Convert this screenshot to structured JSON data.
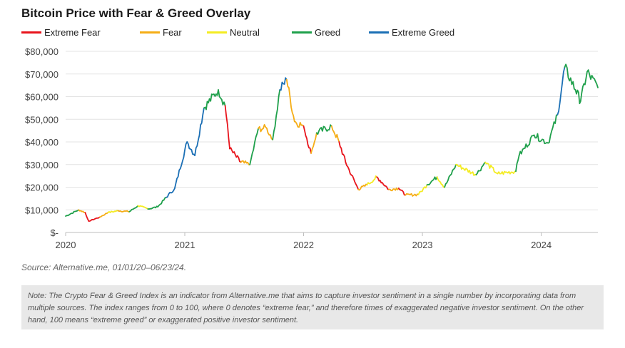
{
  "chart_data": {
    "type": "line",
    "title": "Bitcoin Price with Fear & Greed Overlay",
    "legend": {
      "placement": "top-left",
      "entries": [
        {
          "name": "Extreme Fear",
          "color": "#e8141c"
        },
        {
          "name": "Fear",
          "color": "#f5ad16"
        },
        {
          "name": "Neutral",
          "color": "#f4ec22"
        },
        {
          "name": "Greed",
          "color": "#1fa04b"
        },
        {
          "name": "Extreme Greed",
          "color": "#1b6fb5"
        }
      ]
    },
    "xlabel": "",
    "ylabel": "",
    "x_ticks": [
      "2020",
      "2021",
      "2022",
      "2023",
      "2024"
    ],
    "y_ticks": [
      "$-",
      "$10,000",
      "$20,000",
      "$30,000",
      "$40,000",
      "$50,000",
      "$60,000",
      "$70,000",
      "$80,000"
    ],
    "ylim": [
      0,
      80000
    ],
    "xlim": [
      "2020-01-01",
      "2024-06-23"
    ],
    "grid": true,
    "series": [
      {
        "date": "2020-01-01",
        "price": 7200,
        "sentiment": "Fear"
      },
      {
        "date": "2020-02-10",
        "price": 10000,
        "sentiment": "Greed"
      },
      {
        "date": "2020-03-01",
        "price": 8800,
        "sentiment": "Fear"
      },
      {
        "date": "2020-03-12",
        "price": 5000,
        "sentiment": "Extreme Fear"
      },
      {
        "date": "2020-04-15",
        "price": 6800,
        "sentiment": "Extreme Fear"
      },
      {
        "date": "2020-05-10",
        "price": 8800,
        "sentiment": "Fear"
      },
      {
        "date": "2020-06-10",
        "price": 9600,
        "sentiment": "Neutral"
      },
      {
        "date": "2020-07-15",
        "price": 9200,
        "sentiment": "Fear"
      },
      {
        "date": "2020-08-10",
        "price": 11800,
        "sentiment": "Greed"
      },
      {
        "date": "2020-09-10",
        "price": 10400,
        "sentiment": "Neutral"
      },
      {
        "date": "2020-10-10",
        "price": 11300,
        "sentiment": "Greed"
      },
      {
        "date": "2020-11-05",
        "price": 15500,
        "sentiment": "Greed"
      },
      {
        "date": "2020-12-01",
        "price": 19500,
        "sentiment": "Extreme Greed"
      },
      {
        "date": "2021-01-08",
        "price": 40000,
        "sentiment": "Extreme Greed"
      },
      {
        "date": "2021-02-01",
        "price": 34000,
        "sentiment": "Extreme Greed"
      },
      {
        "date": "2021-03-01",
        "price": 55000,
        "sentiment": "Extreme Greed"
      },
      {
        "date": "2021-04-14",
        "price": 63000,
        "sentiment": "Greed"
      },
      {
        "date": "2021-05-05",
        "price": 56000,
        "sentiment": "Greed"
      },
      {
        "date": "2021-05-19",
        "price": 37000,
        "sentiment": "Extreme Fear"
      },
      {
        "date": "2021-06-22",
        "price": 31000,
        "sentiment": "Extreme Fear"
      },
      {
        "date": "2021-07-20",
        "price": 30000,
        "sentiment": "Fear"
      },
      {
        "date": "2021-08-15",
        "price": 46000,
        "sentiment": "Greed"
      },
      {
        "date": "2021-09-10",
        "price": 46000,
        "sentiment": "Fear"
      },
      {
        "date": "2021-09-28",
        "price": 41000,
        "sentiment": "Fear"
      },
      {
        "date": "2021-10-20",
        "price": 63000,
        "sentiment": "Greed"
      },
      {
        "date": "2021-11-10",
        "price": 67500,
        "sentiment": "Extreme Greed"
      },
      {
        "date": "2021-12-04",
        "price": 49000,
        "sentiment": "Fear"
      },
      {
        "date": "2022-01-01",
        "price": 47000,
        "sentiment": "Fear"
      },
      {
        "date": "2022-01-24",
        "price": 35000,
        "sentiment": "Extreme Fear"
      },
      {
        "date": "2022-02-10",
        "price": 44000,
        "sentiment": "Fear"
      },
      {
        "date": "2022-03-28",
        "price": 47000,
        "sentiment": "Greed"
      },
      {
        "date": "2022-04-20",
        "price": 40000,
        "sentiment": "Fear"
      },
      {
        "date": "2022-05-10",
        "price": 31000,
        "sentiment": "Extreme Fear"
      },
      {
        "date": "2022-06-18",
        "price": 19000,
        "sentiment": "Extreme Fear"
      },
      {
        "date": "2022-07-15",
        "price": 21000,
        "sentiment": "Fear"
      },
      {
        "date": "2022-08-14",
        "price": 24500,
        "sentiment": "Neutral"
      },
      {
        "date": "2022-09-20",
        "price": 19000,
        "sentiment": "Extreme Fear"
      },
      {
        "date": "2022-10-20",
        "price": 19500,
        "sentiment": "Fear"
      },
      {
        "date": "2022-11-10",
        "price": 16500,
        "sentiment": "Extreme Fear"
      },
      {
        "date": "2022-12-20",
        "price": 16800,
        "sentiment": "Fear"
      },
      {
        "date": "2023-01-15",
        "price": 21000,
        "sentiment": "Neutral"
      },
      {
        "date": "2023-02-15",
        "price": 24500,
        "sentiment": "Greed"
      },
      {
        "date": "2023-03-10",
        "price": 20000,
        "sentiment": "Neutral"
      },
      {
        "date": "2023-04-14",
        "price": 30000,
        "sentiment": "Greed"
      },
      {
        "date": "2023-06-15",
        "price": 25500,
        "sentiment": "Neutral"
      },
      {
        "date": "2023-07-13",
        "price": 31000,
        "sentiment": "Greed"
      },
      {
        "date": "2023-08-20",
        "price": 26000,
        "sentiment": "Neutral"
      },
      {
        "date": "2023-10-15",
        "price": 27000,
        "sentiment": "Neutral"
      },
      {
        "date": "2023-10-25",
        "price": 34000,
        "sentiment": "Greed"
      },
      {
        "date": "2023-12-10",
        "price": 43000,
        "sentiment": "Greed"
      },
      {
        "date": "2024-01-22",
        "price": 39500,
        "sentiment": "Greed"
      },
      {
        "date": "2024-02-20",
        "price": 52000,
        "sentiment": "Greed"
      },
      {
        "date": "2024-03-13",
        "price": 73000,
        "sentiment": "Extreme Greed"
      },
      {
        "date": "2024-04-15",
        "price": 63000,
        "sentiment": "Greed"
      },
      {
        "date": "2024-05-01",
        "price": 58000,
        "sentiment": "Greed"
      },
      {
        "date": "2024-05-21",
        "price": 71000,
        "sentiment": "Greed"
      },
      {
        "date": "2024-06-23",
        "price": 64000,
        "sentiment": "Greed"
      }
    ]
  },
  "source": "Source: Alternative.me, 01/01/20–06/23/24.",
  "note": "Note: The Crypto Fear & Greed Index is an indicator from Alternative.me that aims to capture investor sentiment in a single number by incorporating data from multiple sources. The index ranges from 0 to 100, where 0 denotes “extreme fear,” and therefore times of exaggerated negative investor sentiment. On the other hand, 100 means “extreme greed” or exaggerated positive investor sentiment."
}
